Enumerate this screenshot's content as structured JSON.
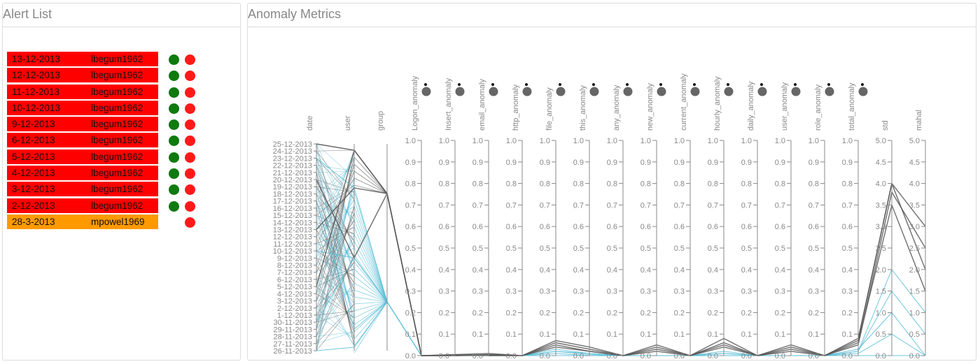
{
  "alert_panel": {
    "title": "Alert List"
  },
  "alerts": [
    {
      "date": "13-12-2013",
      "user": "lbegum1962",
      "color": "#ff0000",
      "ok": true
    },
    {
      "date": "12-12-2013",
      "user": "lbegum1962",
      "color": "#ff0000",
      "ok": true
    },
    {
      "date": "11-12-2013",
      "user": "lbegum1962",
      "color": "#ff0000",
      "ok": true
    },
    {
      "date": "10-12-2013",
      "user": "lbegum1962",
      "color": "#ff0000",
      "ok": true
    },
    {
      "date": "9-12-2013",
      "user": "lbegum1962",
      "color": "#ff0000",
      "ok": true
    },
    {
      "date": "6-12-2013",
      "user": "lbegum1962",
      "color": "#ff0000",
      "ok": true
    },
    {
      "date": "5-12-2013",
      "user": "lbegum1962",
      "color": "#ff0000",
      "ok": true
    },
    {
      "date": "4-12-2013",
      "user": "lbegum1962",
      "color": "#ff0000",
      "ok": true
    },
    {
      "date": "3-12-2013",
      "user": "lbegum1962",
      "color": "#ff0000",
      "ok": true
    },
    {
      "date": "2-12-2013",
      "user": "lbegum1962",
      "color": "#ff0000",
      "ok": true
    },
    {
      "date": "28-3-2013",
      "user": "mpowel1969",
      "color": "#ff9900",
      "ok": false
    }
  ],
  "metrics_panel": {
    "title": "Anomaly Metrics"
  },
  "parallel_coords": {
    "date_axis": {
      "label": "date",
      "ticks": [
        "25-12-2013",
        "24-12-2013",
        "23-12-2013",
        "22-12-2013",
        "21-12-2013",
        "20-12-2013",
        "19-12-2013",
        "18-12-2013",
        "17-12-2013",
        "16-12-2013",
        "15-12-2013",
        "14-12-2013",
        "13-12-2013",
        "12-12-2013",
        "11-12-2013",
        "10-12-2013",
        "9-12-2013",
        "8-12-2013",
        "7-12-2013",
        "6-12-2013",
        "5-12-2013",
        "4-12-2013",
        "3-12-2013",
        "2-12-2013",
        "1-12-2013",
        "30-11-2013",
        "29-11-2013",
        "28-11-2013",
        "27-11-2013",
        "26-11-2013"
      ]
    },
    "user_axis": {
      "label": "user"
    },
    "group_axis": {
      "label": "group"
    },
    "numeric_axes": [
      {
        "label": "Logon_anomaly",
        "ticks": [
          "0.0",
          "0.1",
          "0.2",
          "0.3",
          "0.4",
          "0.5",
          "0.6",
          "0.7",
          "0.8",
          "0.9",
          "1.0"
        ]
      },
      {
        "label": "Insert_anomaly",
        "ticks": [
          "0.0",
          "0.1",
          "0.2",
          "0.3",
          "0.4",
          "0.5",
          "0.6",
          "0.7",
          "0.8",
          "0.9",
          "1.0"
        ]
      },
      {
        "label": "email_anomaly",
        "ticks": [
          "0.0",
          "0.1",
          "0.2",
          "0.3",
          "0.4",
          "0.5",
          "0.6",
          "0.7",
          "0.8",
          "0.9",
          "1.0"
        ]
      },
      {
        "label": "http_anomaly",
        "ticks": [
          "0.0",
          "0.1",
          "0.2",
          "0.3",
          "0.4",
          "0.5",
          "0.6",
          "0.7",
          "0.8",
          "0.9",
          "1.0"
        ]
      },
      {
        "label": "file_anomaly",
        "ticks": [
          "0.0",
          "0.1",
          "0.2",
          "0.3",
          "0.4",
          "0.5",
          "0.6",
          "0.7",
          "0.8",
          "0.9",
          "1.0"
        ]
      },
      {
        "label": "this_anomaly",
        "ticks": [
          "0.0",
          "0.1",
          "0.2",
          "0.3",
          "0.4",
          "0.5",
          "0.6",
          "0.7",
          "0.8",
          "0.9",
          "1.0"
        ]
      },
      {
        "label": "any_anomaly",
        "ticks": [
          "0.0",
          "0.1",
          "0.2",
          "0.3",
          "0.4",
          "0.5",
          "0.6",
          "0.7",
          "0.8",
          "0.9",
          "1.0"
        ]
      },
      {
        "label": "new_anomaly",
        "ticks": [
          "0.0",
          "0.1",
          "0.2",
          "0.3",
          "0.4",
          "0.5",
          "0.6",
          "0.7",
          "0.8",
          "0.9",
          "1.0"
        ]
      },
      {
        "label": "current_anomaly",
        "ticks": [
          "0.0",
          "0.1",
          "0.2",
          "0.3",
          "0.4",
          "0.5",
          "0.6",
          "0.7",
          "0.8",
          "0.9",
          "1.0"
        ]
      },
      {
        "label": "hourly_anomaly",
        "ticks": [
          "0.0",
          "0.1",
          "0.2",
          "0.3",
          "0.4",
          "0.5",
          "0.6",
          "0.7",
          "0.8",
          "0.9",
          "1.0"
        ]
      },
      {
        "label": "daily_anomaly",
        "ticks": [
          "0.0",
          "0.1",
          "0.2",
          "0.3",
          "0.4",
          "0.5",
          "0.6",
          "0.7",
          "0.8",
          "0.9",
          "1.0"
        ]
      },
      {
        "label": "user_anomaly",
        "ticks": [
          "0.0",
          "0.1",
          "0.2",
          "0.3",
          "0.4",
          "0.5",
          "0.6",
          "0.7",
          "0.8",
          "0.9",
          "1.0"
        ]
      },
      {
        "label": "role_anomaly",
        "ticks": [
          "0.0",
          "0.1",
          "0.2",
          "0.3",
          "0.4",
          "0.5",
          "0.6",
          "0.7",
          "0.8",
          "0.9",
          "1.0"
        ]
      },
      {
        "label": "total_anomaly",
        "ticks": [
          "0.0",
          "0.1",
          "0.2",
          "0.3",
          "0.4",
          "0.5",
          "0.6",
          "0.7",
          "0.8",
          "0.9",
          "1.0"
        ]
      },
      {
        "label": "std",
        "ticks": [
          "0.0",
          "0.5",
          "1.0",
          "1.5",
          "2.0",
          "2.5",
          "3.0",
          "3.5",
          "4.0",
          "4.5",
          "5.0"
        ]
      },
      {
        "label": "mahal",
        "ticks": [
          "0.0",
          "0.5",
          "1.0",
          "1.5",
          "2.0",
          "2.5",
          "3.0",
          "3.5",
          "4.0",
          "4.5",
          "5.0"
        ]
      }
    ],
    "colors": {
      "highlight": "#555555",
      "normal": "#56bcd6"
    },
    "highlight_lines": [
      {
        "date_index": 0,
        "values": [
          0.0,
          0.005,
          0.01,
          0.0,
          0.07,
          0.04,
          0.0,
          0.05,
          0.0,
          0.08,
          0.0,
          0.05,
          0.0,
          0.08,
          4.0,
          2.0
        ]
      },
      {
        "date_index": 5,
        "values": [
          0.0,
          0.0,
          0.005,
          0.0,
          0.05,
          0.02,
          0.0,
          0.03,
          0.0,
          0.05,
          0.0,
          0.03,
          0.0,
          0.06,
          3.5,
          1.5
        ]
      },
      {
        "date_index": 12,
        "values": [
          0.0,
          0.003,
          0.0,
          0.0,
          0.06,
          0.03,
          0.0,
          0.04,
          0.0,
          0.06,
          0.0,
          0.04,
          0.0,
          0.07,
          4.0,
          3.0
        ]
      },
      {
        "date_index": 20,
        "values": [
          0.0,
          0.0,
          0.002,
          0.0,
          0.04,
          0.02,
          0.0,
          0.02,
          0.0,
          0.04,
          0.0,
          0.02,
          0.0,
          0.05,
          3.8,
          2.5
        ]
      }
    ],
    "normal_lines": [
      {
        "date_index": 2,
        "values": [
          0.0,
          0.0,
          0.005,
          0.0,
          0.02,
          0.01,
          0.0,
          0.0,
          0.0,
          0.02,
          0.0,
          0.0,
          0.0,
          0.02,
          2.0,
          1.0
        ]
      },
      {
        "date_index": 8,
        "values": [
          0.0,
          0.0,
          0.0,
          0.0,
          0.03,
          0.01,
          0.0,
          0.0,
          0.0,
          0.01,
          0.0,
          0.0,
          0.0,
          0.03,
          1.0,
          0.0
        ]
      },
      {
        "date_index": 15,
        "values": [
          0.0,
          0.0,
          0.0,
          0.0,
          0.01,
          0.0,
          0.0,
          0.0,
          0.0,
          0.0,
          0.0,
          0.0,
          0.0,
          0.01,
          0.5,
          0.0
        ]
      },
      {
        "date_index": 25,
        "values": [
          0.0,
          0.0,
          0.003,
          0.0,
          0.02,
          0.005,
          0.0,
          0.0,
          0.0,
          0.01,
          0.0,
          0.0,
          0.0,
          0.02,
          1.5,
          0.5
        ]
      },
      {
        "date_index": 29,
        "values": [
          0.0,
          0.0,
          0.0,
          0.0,
          0.0,
          0.0,
          0.0,
          0.0,
          0.0,
          0.0,
          0.0,
          0.0,
          0.0,
          0.0,
          0.0,
          0.0
        ]
      }
    ]
  }
}
